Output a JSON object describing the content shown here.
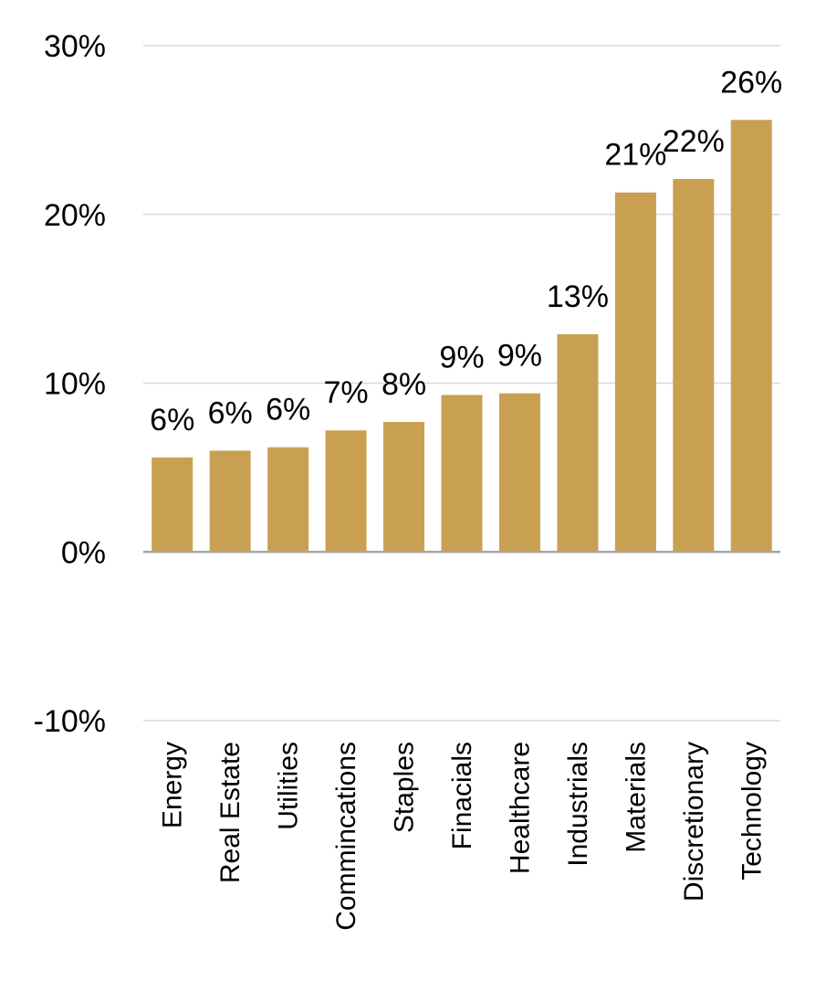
{
  "chart_data": {
    "type": "bar",
    "title": "",
    "xlabel": "",
    "ylabel": "",
    "categories": [
      "Energy",
      "Real Estate",
      "Utilities",
      "Commincations",
      "Staples",
      "Finacials",
      "Healthcare",
      "Industrials",
      "Materials",
      "Discretionary",
      "Technology"
    ],
    "values": [
      5.6,
      6.0,
      6.2,
      7.2,
      7.7,
      9.3,
      9.4,
      12.9,
      21.3,
      22.1,
      25.6
    ],
    "data_labels": [
      "6%",
      "6%",
      "6%",
      "7%",
      "8%",
      "9%",
      "9%",
      "13%",
      "21%",
      "22%",
      "26%"
    ],
    "ylim": [
      -10,
      30
    ],
    "y_ticks": [
      30,
      20,
      10,
      0,
      -10
    ],
    "y_tick_labels": [
      "30%",
      "20%",
      "10%",
      "0%",
      "-10%"
    ],
    "grid": true,
    "legend": "none",
    "bar_color": "#C9A052",
    "grid_color": "#D9D9D9",
    "axis_color": "#A6A6A6"
  }
}
